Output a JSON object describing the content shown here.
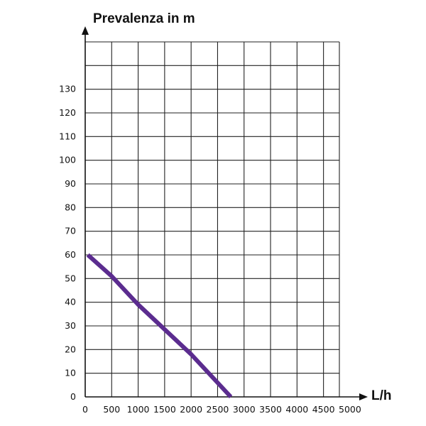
{
  "chart_data": {
    "type": "line",
    "ylabel": "Prevalenza in m",
    "xlabel": "L/h",
    "x_ticks": [
      0,
      500,
      1000,
      1500,
      2000,
      2500,
      3000,
      3500,
      4000,
      4500,
      5000
    ],
    "y_ticks": [
      0,
      10,
      20,
      30,
      40,
      50,
      60,
      70,
      80,
      90,
      100,
      110,
      120,
      130
    ],
    "xlim": [
      0,
      4800
    ],
    "ylim": [
      0,
      150
    ],
    "grid": true,
    "legend": "none",
    "series": [
      {
        "color": "#5b2c8f",
        "x": [
          50,
          500,
          1000,
          2000,
          2750
        ],
        "y": [
          60,
          51,
          39,
          18,
          0
        ]
      }
    ]
  }
}
